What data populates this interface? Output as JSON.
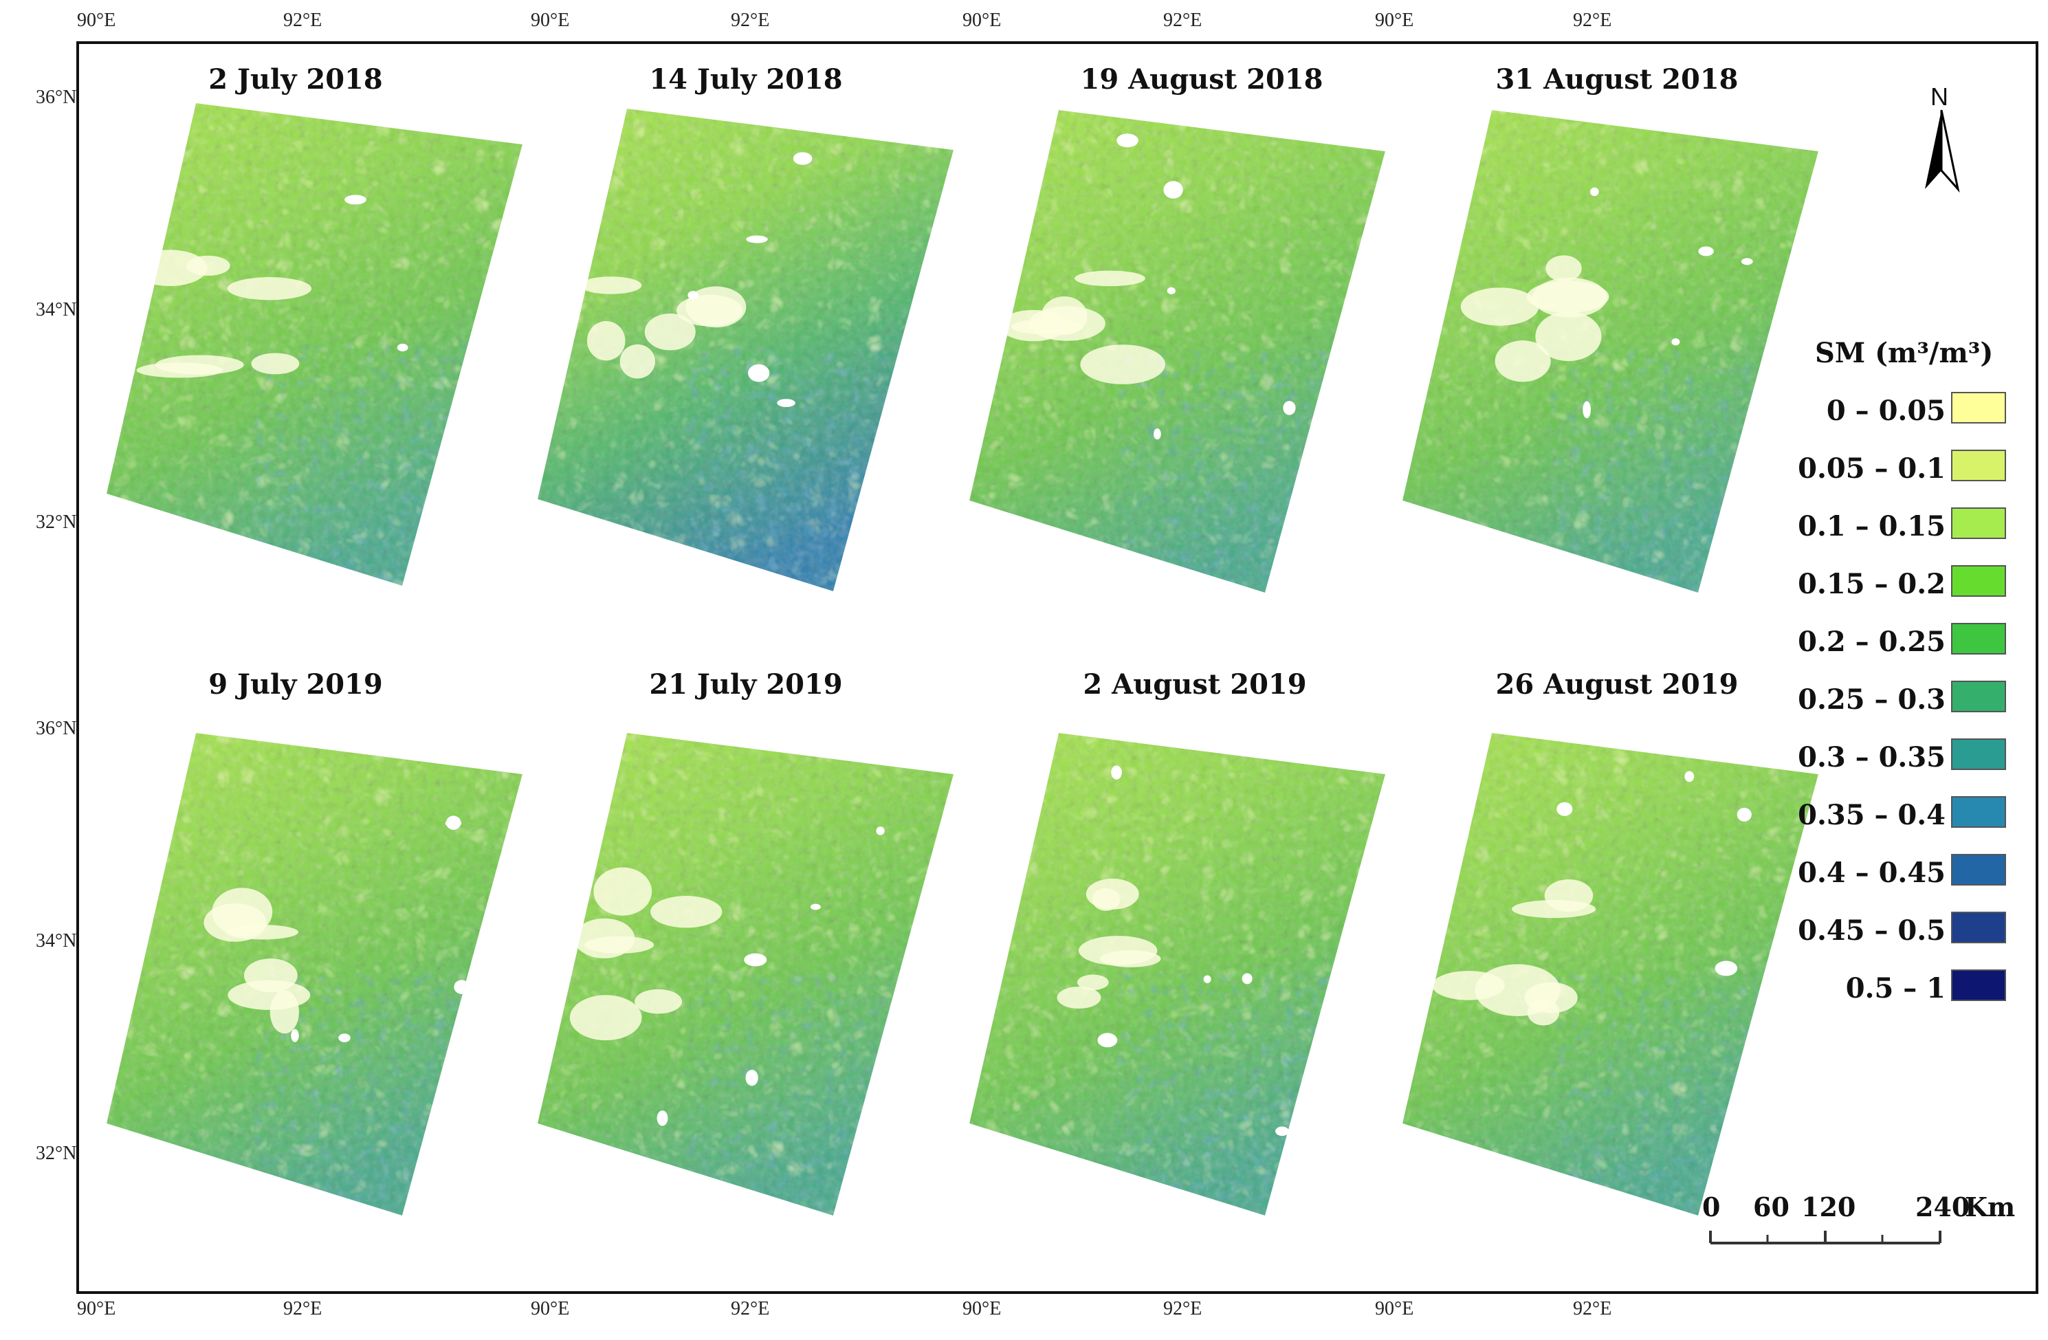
{
  "figure": {
    "axis_labels": {
      "top": [
        "90°E",
        "92°E",
        "90°E",
        "92°E",
        "90°E",
        "92°E",
        "90°E",
        "92°E"
      ],
      "bottom": [
        "90°E",
        "92°E",
        "90°E",
        "92°E",
        "90°E",
        "92°E",
        "90°E",
        "92°E"
      ],
      "left": [
        "36°N",
        "34°N",
        "32°N",
        "36°N",
        "34°N",
        "32°N"
      ]
    },
    "panels": [
      {
        "title": "2 July 2018",
        "wetness": 0.35
      },
      {
        "title": "14 July 2018",
        "wetness": 0.65
      },
      {
        "title": "19 August 2018",
        "wetness": 0.45
      },
      {
        "title": "31 August 2018",
        "wetness": 0.42
      },
      {
        "title": "9 July 2019",
        "wetness": 0.4
      },
      {
        "title": "21 July 2019",
        "wetness": 0.38
      },
      {
        "title": "2 August 2019",
        "wetness": 0.48
      },
      {
        "title": "26 August 2019",
        "wetness": 0.3
      }
    ],
    "north_arrow": {
      "label": "N"
    },
    "legend": {
      "title": "SM (m³/m³)",
      "classes": [
        {
          "label": "0 – 0.05",
          "color": "#ffff99"
        },
        {
          "label": "0.05 – 0.1",
          "color": "#d8f36a"
        },
        {
          "label": "0.1 – 0.15",
          "color": "#a6ec4e"
        },
        {
          "label": "0.15 – 0.2",
          "color": "#66dd2e"
        },
        {
          "label": "0.2 – 0.25",
          "color": "#3fc640"
        },
        {
          "label": "0.25 – 0.3",
          "color": "#35b06c"
        },
        {
          "label": "0.3 – 0.35",
          "color": "#2a9c92"
        },
        {
          "label": "0.35 – 0.4",
          "color": "#2788b0"
        },
        {
          "label": "0.4 – 0.45",
          "color": "#2266a6"
        },
        {
          "label": "0.45 – 0.5",
          "color": "#1d3f8c"
        },
        {
          "label": "0.5 – 1",
          "color": "#0d1670"
        }
      ]
    },
    "scale_bar": {
      "labels": [
        "0",
        "60",
        "120",
        "240"
      ],
      "unit": "Km"
    }
  }
}
